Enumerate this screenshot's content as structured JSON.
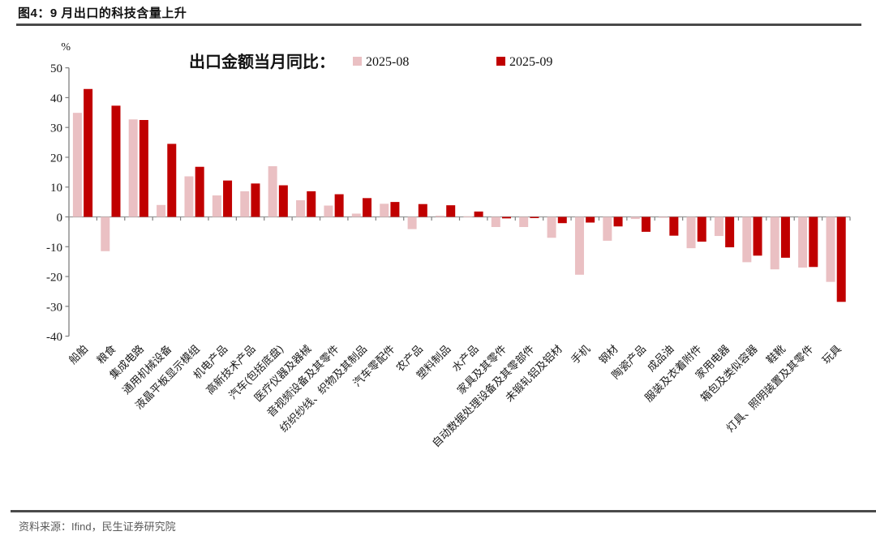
{
  "header": {
    "title": "图4：9 月出口的科技含量上升"
  },
  "footer": {
    "source": "资料来源：Ifind，民生证券研究院"
  },
  "chart_data": {
    "type": "bar",
    "title": "出口金额当月同比：",
    "unit_label": "%",
    "ylim": [
      -40,
      50
    ],
    "ytick_step": 10,
    "grid": false,
    "legend_position": "top",
    "bar_colors": {
      "pink_2025_08": "#EAC0C3",
      "red_2025_09": "#C00000"
    },
    "categories": [
      "船舶",
      "粮食",
      "集成电路",
      "通用机械设备",
      "液晶平板显示模组",
      "机电产品",
      "高新技术产品",
      "汽车(包括底盘)",
      "医疗仪器及器械",
      "音视频设备及其零件",
      "纺织纱线、织物及其制品",
      "汽车零配件",
      "农产品",
      "塑料制品",
      "水产品",
      "家具及其零件",
      "自动数据处理设备及其零部件",
      "未锻轧铝及铝材",
      "手机",
      "钢材",
      "陶瓷产品",
      "成品油",
      "服装及衣着附件",
      "家用电器",
      "箱包及类似容器",
      "鞋靴",
      "灯具、照明装置及其零件",
      "玩具"
    ],
    "series": [
      {
        "name": "2025-08",
        "color": "#EAC0C3",
        "values": [
          34.9,
          -11.5,
          32.7,
          4.0,
          13.6,
          7.2,
          8.6,
          17.0,
          5.6,
          3.8,
          1.1,
          4.4,
          -4.1,
          0.4,
          0.2,
          -3.4,
          -3.4,
          -7.0,
          -19.4,
          -8.0,
          -0.7,
          -0.3,
          -10.5,
          -6.4,
          -15.2,
          -17.6,
          -17.0,
          -21.8
        ]
      },
      {
        "name": "2025-09",
        "color": "#C00000",
        "values": [
          42.9,
          37.3,
          32.5,
          24.5,
          16.8,
          12.2,
          11.2,
          10.6,
          8.6,
          7.6,
          6.3,
          5.0,
          4.3,
          3.9,
          1.8,
          -0.5,
          -0.4,
          -2.1,
          -1.9,
          -3.2,
          -5.0,
          -6.3,
          -8.3,
          -10.2,
          -13.0,
          -13.7,
          -16.8,
          -28.5
        ]
      }
    ]
  }
}
